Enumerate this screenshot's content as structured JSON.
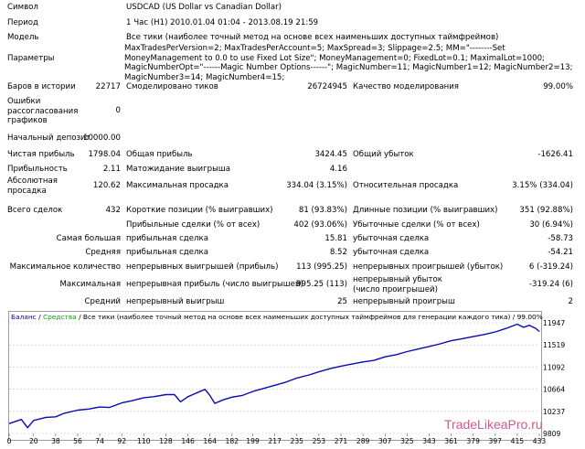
{
  "report": {
    "symbol": {
      "label": "Символ",
      "value": "USDCAD (US Dollar vs Canadian Dollar)"
    },
    "period": {
      "label": "Период",
      "value": "1 Час (H1) 2010.01.04 01:04 - 2013.08.19 21:59"
    },
    "model": {
      "label": "Модель",
      "value": "Все тики (наиболее точный метод на основе всех наименьших доступных таймфреймов)"
    },
    "params": {
      "label": "Параметры",
      "value": "MaxTradesPerVersion=2; MaxTradesPerAccount=5; MaxSpread=3; Slippage=2.5; MM=\"--------Set MoneyManagement to 0.0 to use Fixed Lot Size\"; MoneyManagement=0; FixedLot=0.1; MaximalLot=1000; MagicNumberOpt=\"------Magic Number Options------\"; MagicNumber=11; MagicNumber1=12; MagicNumber2=13; MagicNumber3=14; MagicNumber4=15;"
    },
    "bars": {
      "label": "Баров в истории",
      "value": "22717"
    },
    "ticks": {
      "label": "Смоделировано тиков",
      "value": "26724945"
    },
    "quality": {
      "label": "Качество моделирования",
      "value": "99.00%"
    },
    "errors": {
      "label": "Ошибки рассогласования графиков",
      "value": "0"
    },
    "deposit": {
      "label": "Начальный депозит",
      "value": "10000.00"
    },
    "net_profit": {
      "label": "Чистая прибыль",
      "value": "1798.04"
    },
    "gross_profit": {
      "label": "Общая прибыль",
      "value": "3424.45"
    },
    "gross_loss": {
      "label": "Общий убыток",
      "value": "-1626.41"
    },
    "profit_factor": {
      "label": "Прибыльность",
      "value": "2.11"
    },
    "expected_payoff": {
      "label": "Матожидание выигрыша",
      "value": "4.16"
    },
    "abs_drawdown": {
      "label": "Абсолютная просадка",
      "value": "120.62"
    },
    "max_drawdown": {
      "label": "Максимальная просадка",
      "value": "334.04 (3.15%)"
    },
    "rel_drawdown": {
      "label": "Относительная просадка",
      "value": "3.15% (334.04)"
    },
    "total_trades": {
      "label": "Всего сделок",
      "value": "432"
    },
    "short_pos": {
      "label": "Короткие позиции (% выигравших)",
      "value": "81 (93.83%)"
    },
    "long_pos": {
      "label": "Длинные позиции (% выигравших)",
      "value": "351 (92.88%)"
    },
    "profit_trades": {
      "label": "Прибыльные сделки (% от всех)",
      "value": "402 (93.06%)"
    },
    "loss_trades": {
      "label": "Убыточные сделки (% от всех)",
      "value": "30 (6.94%)"
    },
    "largest": {
      "label": "Самая большая",
      "profit_label": "прибыльная сделка",
      "profit": "15.81",
      "loss_label": "убыточная сделка",
      "loss": "-58.73"
    },
    "average": {
      "label": "Средняя",
      "profit_label": "прибыльная сделка",
      "profit": "8.52",
      "loss_label": "убыточная сделка",
      "loss": "-54.21"
    },
    "max_count": {
      "label": "Максимальное количество",
      "wins_label": "непрерывных выигрышей (прибыль)",
      "wins": "113 (995.25)",
      "losses_label": "непрерывных проигрышей (убыток)",
      "losses": "6 (-319.24)"
    },
    "max_amount": {
      "label": "Максимальная",
      "wins_label": "непрерывная прибыль (число выигрышей)",
      "wins": "995.25 (113)",
      "losses_label": "непрерывный убыток (число проигрышей)",
      "losses": "-319.24 (6)"
    },
    "avg_cons": {
      "label": "Средний",
      "wins_label": "непрерывный выигрыш",
      "wins": "25",
      "losses_label": "непрерывный проигрыш",
      "losses": "2"
    }
  },
  "chart_data": {
    "type": "line",
    "legend": {
      "balance": "Баланс",
      "divider": "/",
      "equity": "Средства",
      "description": "/ Все тики (наиболее точный метод на основе всех наименьших доступных таймфреймов для генерации каждого тика) / 99.00%"
    },
    "x_ticks": [
      "0",
      "20",
      "38",
      "56",
      "74",
      "92",
      "110",
      "128",
      "146",
      "164",
      "182",
      "199",
      "217",
      "235",
      "253",
      "271",
      "289",
      "307",
      "325",
      "343",
      "361",
      "379",
      "397",
      "415",
      "433"
    ],
    "y_ticks": [
      "11947",
      "11519",
      "11092",
      "10664",
      "10237",
      "9809"
    ],
    "ylim": [
      9809,
      11947
    ],
    "xlim": [
      0,
      433
    ],
    "colors": {
      "balance": "#0a0ab4",
      "equity": "#12a012",
      "grid": "#c8c8c8"
    },
    "series": [
      {
        "name": "Баланс",
        "points": [
          [
            0,
            10000
          ],
          [
            10,
            10080
          ],
          [
            15,
            9920
          ],
          [
            20,
            10060
          ],
          [
            30,
            10120
          ],
          [
            38,
            10130
          ],
          [
            45,
            10200
          ],
          [
            56,
            10260
          ],
          [
            65,
            10280
          ],
          [
            74,
            10320
          ],
          [
            82,
            10310
          ],
          [
            92,
            10400
          ],
          [
            100,
            10440
          ],
          [
            110,
            10500
          ],
          [
            118,
            10520
          ],
          [
            128,
            10560
          ],
          [
            135,
            10560
          ],
          [
            140,
            10420
          ],
          [
            146,
            10520
          ],
          [
            150,
            10560
          ],
          [
            154,
            10600
          ],
          [
            160,
            10660
          ],
          [
            164,
            10540
          ],
          [
            168,
            10390
          ],
          [
            175,
            10460
          ],
          [
            182,
            10510
          ],
          [
            190,
            10540
          ],
          [
            199,
            10620
          ],
          [
            208,
            10680
          ],
          [
            217,
            10740
          ],
          [
            226,
            10800
          ],
          [
            235,
            10880
          ],
          [
            245,
            10940
          ],
          [
            253,
            11000
          ],
          [
            262,
            11060
          ],
          [
            271,
            11110
          ],
          [
            280,
            11150
          ],
          [
            289,
            11190
          ],
          [
            298,
            11220
          ],
          [
            307,
            11290
          ],
          [
            316,
            11330
          ],
          [
            325,
            11390
          ],
          [
            334,
            11440
          ],
          [
            343,
            11490
          ],
          [
            352,
            11540
          ],
          [
            361,
            11600
          ],
          [
            370,
            11640
          ],
          [
            379,
            11680
          ],
          [
            388,
            11720
          ],
          [
            397,
            11770
          ],
          [
            406,
            11840
          ],
          [
            415,
            11920
          ],
          [
            420,
            11860
          ],
          [
            425,
            11900
          ],
          [
            430,
            11840
          ],
          [
            433,
            11780
          ]
        ]
      }
    ]
  },
  "watermark": "TradeLikeaPro.ru"
}
